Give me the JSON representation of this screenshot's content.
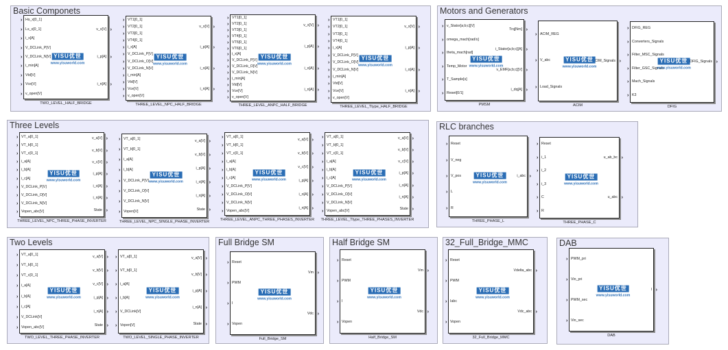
{
  "logo": {
    "mark": "YISU优世",
    "url": "www.yisuworld.com"
  },
  "areas": [
    {
      "title": "Basic Componets",
      "blocks": [
        {
          "name": "TWO_LEVEL_HALF_BRIDGE",
          "inputs": [
            "Hs_x[0_1]",
            "Ls_x[0_1]",
            "i_x[A]",
            "V_DCLink_P[V]",
            "V_DCLink_N[V]",
            "i_min[A]",
            "Vtd[V]",
            "Vce[V]",
            "v_open[V]"
          ],
          "outputs": [
            "v_x[V]",
            "i_p[A]",
            "i_n[A]"
          ]
        },
        {
          "name": "THREE_LEVEL_NPC_HALF_BRIDGE",
          "inputs": [
            "VT1[0_1]",
            "VT2[0_1]",
            "VT3[0_1]",
            "VT4[0_1]",
            "i_x[A]",
            "V_DCLink_P[V]",
            "V_DCLink_O[V]",
            "V_DCLink_N[V]",
            "i_min[A]",
            "Vtd[V]",
            "Vce[V]",
            "v_open[V]"
          ],
          "outputs": [
            "v_x[V]",
            "i_p[A]",
            "i_o[A]",
            "i_n[A]"
          ]
        },
        {
          "name": "THREE_LEVEL_ANPC_HALF_BRIDGE",
          "inputs": [
            "VT1[0_1]",
            "VT2[0_1]",
            "VT3[0_1]",
            "VT4[0_1]",
            "VT5[0_1]",
            "VT6[0_1]",
            "i_x[A]",
            "V_DCLink_P[V]",
            "V_DCLink_O[V]",
            "V_DCLink_N[V]",
            "i_min[A]",
            "Vtd[V]",
            "Vce[V]",
            "v_open[V]"
          ],
          "outputs": [
            "v_x[V]",
            "i_p[A]",
            "i_o[A]",
            "i_n[A]"
          ]
        },
        {
          "name": "THREE_LEVEL_Ttype_HALF_BRIDGE",
          "inputs": [
            "VT1[0_1]",
            "VT2[0_1]",
            "VT3[0_1]",
            "VT4[0_1]",
            "i_x[A]",
            "V_DCLink_P[V]",
            "V_DCLink_O[V]",
            "V_DCLink_N[V]",
            "i_min[A]",
            "Vtd[V]",
            "Vce[V]",
            "v_open[V]"
          ],
          "outputs": [
            "v_x[V]",
            "i_p[A]",
            "i_o[A]",
            "i_n[A]"
          ]
        }
      ]
    },
    {
      "title": "Motors and Generators",
      "blocks": [
        {
          "name": "PMSM",
          "inputs": [
            "v_Stator[a;b;c][V]",
            "omega_mach[rad/s]",
            "theta_mach[rad]",
            "Temp_Motor",
            "T_Sample[s]",
            "Reset[0/1]"
          ],
          "outputs": [
            "Trq[Nm]",
            "i_Stator[a;b;c][A]",
            "v_EMF[a;b;c][V]",
            "i_dq[A]"
          ]
        },
        {
          "name": "ACIM",
          "inputs": [
            "ACIM_REG",
            "V_abc",
            "Load_Signals"
          ],
          "outputs": [
            "ACIM_Signals"
          ]
        },
        {
          "name": "DFIG",
          "inputs": [
            "DFIG_REG",
            "Converters_Signals",
            "Filter_MSC_Signals",
            "Filter_GSC_Signals",
            "Mach_Signals",
            "K3"
          ],
          "outputs": [
            "DFIG_Signals"
          ]
        }
      ]
    },
    {
      "title": "Three Levels",
      "blocks": [
        {
          "name": "THREE_LEVEL_NPC_THREE_PHASE_INVERTER",
          "inputs": [
            "VT_a[0_1]",
            "VT_b[0_1]",
            "VT_c[0_1]",
            "i_a[A]",
            "i_b[A]",
            "i_c[A]",
            "V_DCLink_P[V]",
            "V_DCLink_O[V]",
            "V_DCLink_N[V]",
            "Vopen_abc[V]"
          ],
          "outputs": [
            "v_a[V]",
            "v_b[V]",
            "v_c[V]",
            "i_p[A]",
            "i_o[A]",
            "i_n[A]",
            "State"
          ]
        },
        {
          "name": "THREE_LEVEL_NPC_SINGLE_PHASE_INVERTER",
          "inputs": [
            "VT_a[0_1]",
            "VT_b[0_1]",
            "i_a[A]",
            "i_b[A]",
            "V_DCLink_P[V]",
            "V_DCLink_O[V]",
            "V_DCLink_N[V]",
            "Vopen[V]"
          ],
          "outputs": [
            "v_a[V]",
            "v_b[V]",
            "i_p[A]",
            "i_o[A]",
            "i_n[A]",
            "State"
          ]
        },
        {
          "name": "THREE_LEVEL_ANPC_THREE_PHASES_INVERTER",
          "inputs": [
            "VT_a[0_1]",
            "VT_b[0_1]",
            "VT_c[0_1]",
            "i_a[A]",
            "i_b[A]",
            "i_c[A]",
            "V_DCLink_P[V]",
            "V_DCLink_O[V]",
            "V_DCLink_N[V]",
            "Vopen_abc[V]"
          ],
          "outputs": [
            "v_a[V]",
            "v_b[V]",
            "v_c[V]",
            "i_p[A]",
            "i_o[A]",
            "i_n[A]"
          ]
        },
        {
          "name": "THREE_LEVEL_Ttype_THREE_PHASES_INVERTER",
          "inputs": [
            "VT_a[0_1]",
            "VT_b[0_1]",
            "VT_c[0_1]",
            "i_a[A]",
            "i_b[A]",
            "i_c[A]",
            "V_DCLink_P[V]",
            "V_DCLink_O[V]",
            "V_DCLink_N[V]",
            "Vopen_abc[V]"
          ],
          "outputs": [
            "v_a[V]",
            "v_b[V]",
            "v_c[V]",
            "i_p[A]",
            "i_o[A]",
            "i_n[A]",
            "State"
          ]
        }
      ]
    },
    {
      "title": "RLC branches",
      "blocks": [
        {
          "name": "THREE_PHASE_L",
          "inputs": [
            "Reset",
            "V_neg",
            "V_pos",
            "L",
            "R"
          ],
          "outputs": [
            "i_abc"
          ]
        },
        {
          "name": "THREE_PHASE_C",
          "inputs": [
            "Reset",
            "i_1",
            "i_2",
            "i_3",
            "C",
            "R"
          ],
          "outputs": [
            "u_ab_bc",
            "u_abc"
          ]
        }
      ]
    },
    {
      "title": "Two Levels",
      "blocks": [
        {
          "name": "TWO_LEVEL_THREE_PHASE_INVERTER",
          "inputs": [
            "VT_a[0_1]",
            "VT_b[0_1]",
            "VT_c[0_1]",
            "i_a[A]",
            "i_b[A]",
            "i_c[A]",
            "V_DCLink[V]",
            "Vopen_abc[V]"
          ],
          "outputs": [
            "v_a[V]",
            "v_b[V]",
            "v_c[V]",
            "i_p[A]",
            "i_n[A]",
            "State"
          ]
        },
        {
          "name": "TWO_LEVEL_SINGLE_PHASE_INVERTER",
          "inputs": [
            "VT_a[0_1]",
            "VT_b[0_1]",
            "i_a[A]",
            "i_b[A]",
            "V_DCLink[V]",
            "Vopen[V]"
          ],
          "outputs": [
            "v_a[V]",
            "v_b[V]",
            "i_p[A]",
            "i_n[A]",
            "State"
          ]
        }
      ]
    },
    {
      "title": "Full Bridge SM",
      "blocks": [
        {
          "name": "Full_Bridge_SM",
          "inputs": [
            "Reset",
            "PWM",
            "I",
            "Vopen"
          ],
          "outputs": [
            "Vm",
            "Vdc"
          ]
        }
      ]
    },
    {
      "title": "Half Bridge SM",
      "blocks": [
        {
          "name": "Half_Bridge_SM",
          "inputs": [
            "Reset",
            "PWM",
            "I",
            "Vopen"
          ],
          "outputs": [
            "Vm",
            "Vdc"
          ]
        }
      ]
    },
    {
      "title": "32_Full_Bridge_MMC",
      "blocks": [
        {
          "name": "32_Full_Bridge_MMC",
          "inputs": [
            "Reset",
            "PWM",
            "Iabc",
            "Vopen"
          ],
          "outputs": [
            "Vdelta_abc",
            "Vdc_abc"
          ]
        }
      ]
    },
    {
      "title": "DAB",
      "blocks": [
        {
          "name": "DAB",
          "inputs": [
            "PWM_pri",
            "Vin_pri",
            "PWM_sec",
            "Vin_sec"
          ],
          "outputs": [
            "I"
          ]
        }
      ]
    }
  ]
}
